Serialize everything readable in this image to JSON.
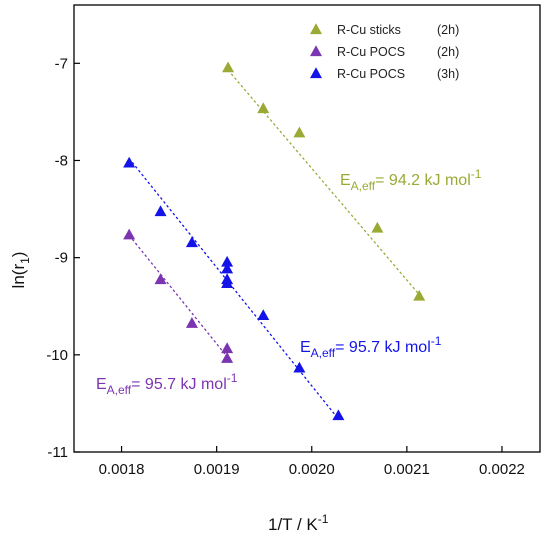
{
  "chart_data": {
    "type": "scatter",
    "xlabel": "1/T / K",
    "xlabel_sup": "-1",
    "ylabel": "ln(r",
    "ylabel_sub": "1",
    "ylabel_close": ")",
    "xlim": [
      0.00175,
      0.00224
    ],
    "ylim": [
      -11,
      -6.4
    ],
    "xticks": [
      0.0018,
      0.0019,
      0.002,
      0.0021,
      0.0022
    ],
    "xtick_labels": [
      "0.0018",
      "0.0019",
      "0.0020",
      "0.0021",
      "0.0022"
    ],
    "yticks": [
      -7,
      -8,
      -9,
      -10,
      -11
    ],
    "ytick_labels": [
      "-7",
      "-8",
      "-9",
      "-10",
      "-11"
    ],
    "grid": false,
    "legend_position": "top-right",
    "series": [
      {
        "name": "R-Cu sticks",
        "tag": "(2h)",
        "color": "#9aaa35",
        "marker": "triangle",
        "x": [
          0.001912,
          0.001949,
          0.001987,
          0.002069,
          0.002113
        ],
        "y": [
          -7.05,
          -7.47,
          -7.72,
          -8.7,
          -9.4
        ],
        "fit": [
          [
            0.001912,
            -7.07
          ],
          [
            0.002113,
            -9.38
          ]
        ]
      },
      {
        "name": "R-Cu POCS",
        "tag": "(2h)",
        "color": "#7b35b0",
        "marker": "triangle",
        "x": [
          0.001808,
          0.001841,
          0.001874,
          0.001911,
          0.001911
        ],
        "y": [
          -8.77,
          -9.23,
          -9.68,
          -9.94,
          -10.04
        ],
        "fit": [
          [
            0.001808,
            -8.77
          ],
          [
            0.001911,
            -10.02
          ]
        ]
      },
      {
        "name": "R-Cu POCS",
        "tag": "(3h)",
        "color": "#1414e8",
        "marker": "triangle",
        "x": [
          0.001808,
          0.001841,
          0.001874,
          0.001911,
          0.001911,
          0.001911,
          0.001911,
          0.001949,
          0.001987,
          0.002028
        ],
        "y": [
          -8.03,
          -8.53,
          -8.85,
          -9.05,
          -9.12,
          -9.23,
          -9.27,
          -9.6,
          -10.14,
          -10.63
        ],
        "fit": [
          [
            0.001808,
            -7.98
          ],
          [
            0.002028,
            -10.66
          ]
        ]
      }
    ],
    "annotations": [
      {
        "text": "E",
        "sub": "A,eff",
        "rest": "= 94.2 kJ mol",
        "sup": "-1",
        "color": "#9aaa35"
      },
      {
        "text": "E",
        "sub": "A,eff",
        "rest": "= 95.7 kJ mol",
        "sup": "-1",
        "color": "#1414e8"
      },
      {
        "text": "E",
        "sub": "A,eff",
        "rest": "= 95.7 kJ mol",
        "sup": "-1",
        "color": "#7b35b0"
      }
    ]
  }
}
